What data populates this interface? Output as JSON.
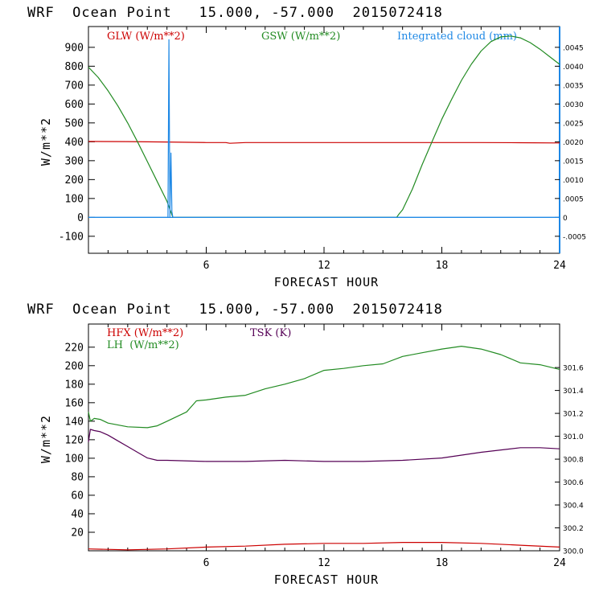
{
  "chart_data": [
    {
      "type": "line",
      "title": "WRF  Ocean Point   15.000, -57.000  2015072418",
      "xlabel": "FORECAST HOUR",
      "ylabel": "W/m**2",
      "xlim": [
        0,
        24
      ],
      "ylim": [
        -190,
        1010
      ],
      "xticks": [
        "6",
        "12",
        "18",
        "24"
      ],
      "yticks": [
        "-100",
        "0",
        "100",
        "200",
        "300",
        "400",
        "500",
        "600",
        "700",
        "800",
        "900"
      ],
      "y2lim": [
        -0.00095,
        0.00505
      ],
      "y2ticks": [
        "-.0005",
        "0",
        ".0005",
        ".0010",
        ".0015",
        ".0020",
        ".0025",
        ".0030",
        ".0035",
        ".0040",
        ".0045"
      ],
      "legend": [
        "GLW (W/m**2)",
        "GSW (W/m**2)",
        "Integrated cloud (mm)"
      ],
      "colors": {
        "glw": "#cc0000",
        "gsw": "#228b22",
        "cloud": "#1e88e5"
      },
      "series": [
        {
          "name": "GLW (W/m**2)",
          "axis": "left",
          "x": [
            0,
            2,
            4,
            6,
            7,
            7.2,
            8,
            10,
            12,
            14,
            16,
            18,
            20,
            22,
            24
          ],
          "y": [
            402,
            401,
            399,
            396,
            396,
            392,
            396,
            396,
            396,
            396,
            396,
            396,
            396,
            395,
            394
          ]
        },
        {
          "name": "GSW (W/m**2)",
          "axis": "left",
          "x": [
            0,
            0.5,
            1,
            1.5,
            2,
            2.5,
            3,
            3.5,
            4,
            4.3,
            5,
            8,
            12,
            15.7,
            15.8,
            16,
            16.5,
            17,
            17.5,
            18,
            18.5,
            19,
            19.5,
            20,
            20.5,
            21,
            21.5,
            22,
            22.5,
            23,
            23.5,
            24
          ],
          "y": [
            795,
            740,
            670,
            590,
            500,
            400,
            295,
            190,
            85,
            0,
            0,
            0,
            0,
            0,
            15,
            40,
            150,
            280,
            400,
            520,
            625,
            725,
            810,
            880,
            930,
            955,
            960,
            950,
            925,
            890,
            850,
            810
          ]
        },
        {
          "name": "Integrated cloud (mm)",
          "axis": "right",
          "x": [
            0,
            4.05,
            4.1,
            4.15,
            4.2,
            4.25,
            4.3,
            4.4,
            4.5,
            24
          ],
          "y": [
            0,
            0,
            0.0047,
            0.0,
            0.0017,
            0.00015,
            0,
            0,
            0,
            0
          ]
        }
      ]
    },
    {
      "type": "line",
      "title": "WRF  Ocean Point   15.000, -57.000  2015072418",
      "xlabel": "FORECAST HOUR",
      "ylabel": "W/m**2",
      "xlim": [
        0,
        24
      ],
      "ylim": [
        0,
        245
      ],
      "xticks": [
        "6",
        "12",
        "18",
        "24"
      ],
      "yticks": [
        "20",
        "40",
        "60",
        "80",
        "100",
        "120",
        "140",
        "160",
        "180",
        "200",
        "220"
      ],
      "y2lim": [
        300.0,
        301.98
      ],
      "y2ticks": [
        "300.0",
        "300.2",
        "300.4",
        "300.6",
        "300.8",
        "301.0",
        "301.2",
        "301.4",
        "301.6"
      ],
      "legend": [
        "HFX (W/m**2)",
        "LH  (W/m**2)",
        "TSK (K)"
      ],
      "colors": {
        "hfx": "#cc0000",
        "lh": "#228b22",
        "tsk": "#550055"
      },
      "series": [
        {
          "name": "HFX (W/m**2)",
          "axis": "left",
          "x": [
            0,
            2,
            4,
            6,
            8,
            10,
            12,
            14,
            16,
            18,
            20,
            22,
            24
          ],
          "y": [
            2,
            1,
            2,
            4,
            5,
            7,
            8,
            8,
            9,
            9,
            8,
            6,
            4
          ]
        },
        {
          "name": "LH  (W/m**2)",
          "axis": "left",
          "x": [
            0,
            0.1,
            0.3,
            0.6,
            1,
            2,
            3,
            3.5,
            4,
            5,
            5.5,
            6,
            7,
            8,
            9,
            10,
            11,
            12,
            13,
            14,
            15,
            16,
            17,
            18,
            19,
            20,
            21,
            22,
            23,
            24
          ],
          "y": [
            150,
            140,
            143,
            142,
            138,
            134,
            133,
            135,
            140,
            150,
            162,
            163,
            166,
            168,
            175,
            180,
            186,
            195,
            197,
            200,
            202,
            210,
            214,
            218,
            221,
            218,
            212,
            203,
            201,
            196
          ]
        },
        {
          "name": "TSK (K)",
          "axis": "right",
          "x": [
            0,
            0.1,
            0.3,
            0.6,
            1,
            1.5,
            2,
            2.5,
            3,
            3.5,
            4,
            6,
            8,
            10,
            12,
            14,
            16,
            18,
            20,
            22,
            23,
            24
          ],
          "y": [
            300.95,
            301.06,
            301.05,
            301.04,
            301.01,
            300.96,
            300.91,
            300.86,
            300.81,
            300.79,
            300.79,
            300.78,
            300.78,
            300.79,
            300.78,
            300.78,
            300.79,
            300.81,
            300.86,
            300.9,
            300.9,
            300.89
          ]
        }
      ]
    }
  ]
}
